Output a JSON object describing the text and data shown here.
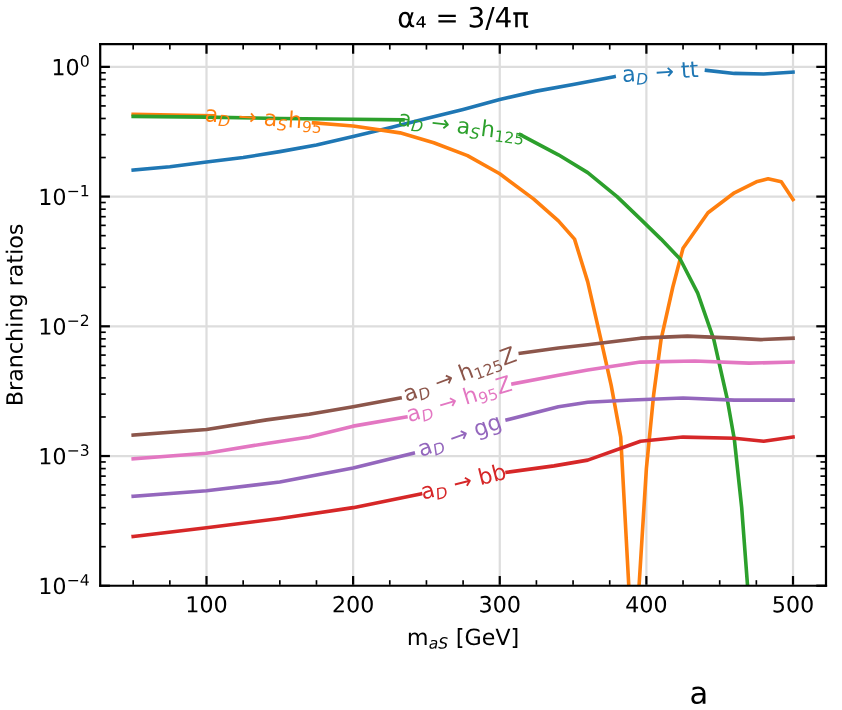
{
  "chart_data": {
    "type": "line",
    "title": "α₄ = 3/4π",
    "xlabel": "m$_{aS}$ [GeV]",
    "ylabel": "Branching ratios",
    "log": "y",
    "grid": true,
    "marker": "none",
    "line_style": "solid",
    "xlim": [
      27.5,
      522.5
    ],
    "xticks": [
      100,
      200,
      300,
      400,
      500
    ],
    "ylim": [
      0.0001,
      1.5
    ],
    "yticks": [
      {
        "value": 1,
        "label": "10$^{0}$"
      },
      {
        "value": 0.1,
        "label": "10$^{−1}$"
      },
      {
        "value": 0.01,
        "label": "10$^{−2}$"
      },
      {
        "value": 0.001,
        "label": "10$^{−3}$"
      },
      {
        "value": 0.0001,
        "label": "10$^{−4}$"
      }
    ],
    "annotations": [
      "a"
    ],
    "series": [
      {
        "name": "a$_{D}$ → tt",
        "color": "#1f77b4",
        "x": [
          50,
          75,
          100,
          125,
          150,
          175,
          200,
          225,
          250,
          275,
          300,
          325,
          350,
          378,
          410,
          441,
          460,
          480,
          500
        ],
        "values": [
          0.16,
          0.17,
          0.185,
          0.2,
          0.222,
          0.25,
          0.29,
          0.34,
          0.4,
          0.47,
          0.56,
          0.65,
          0.73,
          0.84,
          null,
          0.94,
          0.89,
          0.88,
          0.91
        ]
      },
      {
        "name": "a$_{D}$ → a$_{S}$h$_{95}$",
        "color": "#ff7f0e",
        "x": [
          50,
          105,
          139,
          173,
          200,
          232,
          255,
          278,
          300,
          323,
          340,
          351,
          360,
          369,
          376,
          382.5,
          388,
          391,
          395,
          400,
          405,
          410,
          418,
          425,
          442,
          460,
          475,
          483,
          492,
          500
        ],
        "values": [
          0.43,
          0.42,
          null,
          0.37,
          0.35,
          0.31,
          0.26,
          0.207,
          0.15,
          0.096,
          0.065,
          0.047,
          0.022,
          0.0079,
          0.0035,
          0.0014,
          0.0001,
          null,
          0.0001,
          0.0008,
          0.003,
          0.0079,
          0.02,
          0.04,
          0.075,
          0.107,
          0.13,
          0.137,
          0.13,
          0.095
        ]
      },
      {
        "name": "a$_{D}$ → a$_{S}$h$_{125}$",
        "color": "#2ca02c",
        "x": [
          50,
          100,
          150,
          200,
          234,
          274,
          314,
          340,
          360,
          380,
          396,
          410,
          423,
          435,
          446,
          455,
          460,
          465,
          469
        ],
        "values": [
          0.415,
          0.41,
          0.4,
          0.395,
          0.39,
          null,
          0.3,
          0.21,
          0.153,
          0.1,
          0.067,
          0.047,
          0.033,
          0.018,
          0.0079,
          0.0028,
          0.00134,
          0.0004,
          0.0001
        ]
      },
      {
        "name": "a$_{D}$ → h$_{125}$Z",
        "color": "#8c564b",
        "x": [
          50,
          100,
          141,
          170,
          200,
          232,
          273,
          314,
          340,
          360,
          396,
          428,
          460,
          478,
          500
        ],
        "values": [
          0.00145,
          0.0016,
          0.0019,
          0.0021,
          0.0024,
          0.0028,
          null,
          0.0062,
          0.0068,
          0.0072,
          0.0081,
          0.0084,
          0.0081,
          0.0079,
          0.0081
        ]
      },
      {
        "name": "a$_{D}$ → h$_{95}$Z",
        "color": "#e377c2",
        "x": [
          50,
          100,
          141,
          170,
          200,
          236,
          272,
          309,
          340,
          360,
          396,
          433,
          470,
          500
        ],
        "values": [
          0.00095,
          0.00105,
          0.00125,
          0.0014,
          0.0017,
          0.002,
          null,
          0.0036,
          0.0042,
          0.0046,
          0.0053,
          0.0054,
          0.0052,
          0.0053
        ]
      },
      {
        "name": "a$_{D}$ → gg",
        "color": "#9467bd",
        "x": [
          50,
          100,
          150,
          200,
          241,
          273,
          305,
          340,
          360,
          390,
          425,
          460,
          500
        ],
        "values": [
          0.00049,
          0.00054,
          0.00063,
          0.00081,
          0.00105,
          null,
          0.0019,
          0.0024,
          0.0026,
          0.0027,
          0.0028,
          0.0027,
          0.0027
        ]
      },
      {
        "name": "a$_{D}$ → bb",
        "color": "#d62728",
        "x": [
          50,
          100,
          150,
          200,
          246,
          275,
          305,
          337,
          360,
          396,
          425,
          460,
          480,
          500
        ],
        "values": [
          0.00024,
          0.00028,
          0.00033,
          0.0004,
          0.00051,
          null,
          0.00075,
          0.00084,
          0.00093,
          0.0013,
          0.0014,
          0.00137,
          0.0013,
          0.0014
        ]
      }
    ]
  }
}
